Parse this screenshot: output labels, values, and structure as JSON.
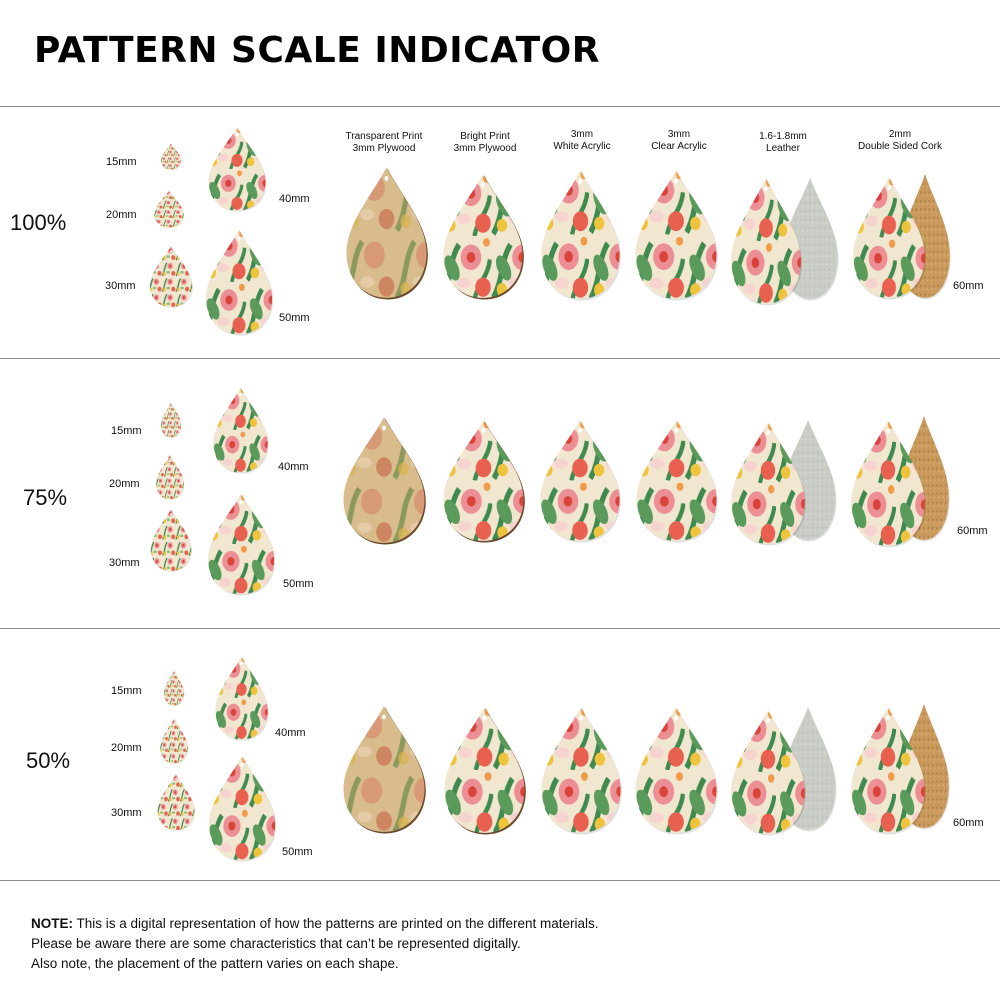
{
  "title": "PATTERN SCALE INDICATOR",
  "materials": [
    {
      "line1": "Transparent Print",
      "line2": "3mm Plywood"
    },
    {
      "line1": "Bright Print",
      "line2": "3mm Plywood"
    },
    {
      "line1": "3mm",
      "line2": "White Acrylic"
    },
    {
      "line1": "3mm",
      "line2": "Clear Acrylic"
    },
    {
      "line1": "1.6-1.8mm",
      "line2": "Leather"
    },
    {
      "line1": "2mm",
      "line2": "Double Sided Cork"
    }
  ],
  "rows": [
    {
      "scale": "100%",
      "s15": "15mm",
      "s20": "20mm",
      "s30": "30mm",
      "s40": "40mm",
      "s50": "50mm",
      "s60": "60mm"
    },
    {
      "scale": "75%",
      "s15": "15mm",
      "s20": "20mm",
      "s30": "30mm",
      "s40": "40mm",
      "s50": "50mm",
      "s60": "60mm"
    },
    {
      "scale": "50%",
      "s15": "15mm",
      "s20": "20mm",
      "s30": "30mm",
      "s40": "40mm",
      "s50": "50mm",
      "s60": "60mm"
    }
  ],
  "note": {
    "label": "NOTE:",
    "line1": " This is a digital representation of how the patterns are printed on the different materials.",
    "line2": "Please be aware there are some characteristics that can’t be represented digitally.",
    "line3": "Also note, the placement of the pattern varies on each shape."
  },
  "colors": {
    "cream": "#f1e6cf",
    "plywood": "#d8bc8c",
    "pink": "#ec8f95",
    "coral": "#e8604f",
    "red": "#d9433a",
    "green": "#3f8a4f",
    "light_green": "#8fbf7a",
    "yellow": "#f0c33c",
    "orange": "#f09a4a",
    "leather": "#c9cdc6",
    "cork": "#c99a5c"
  }
}
